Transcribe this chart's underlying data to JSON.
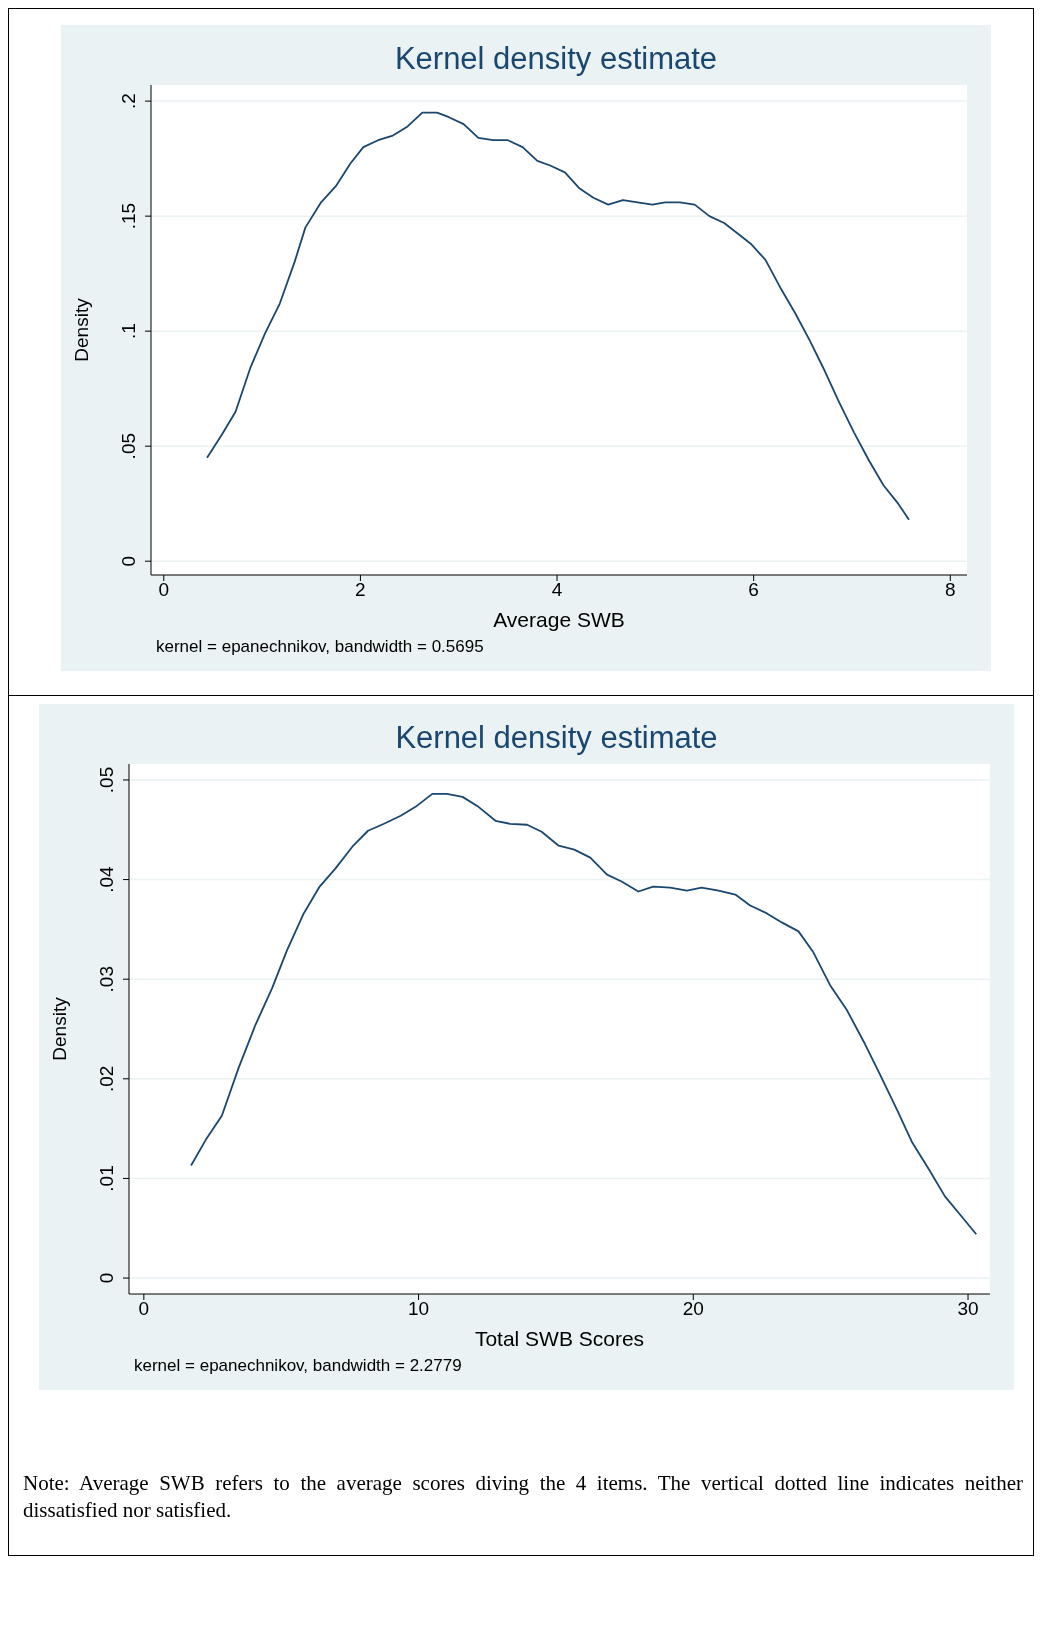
{
  "chart_data": [
    {
      "type": "line",
      "title": "Kernel density estimate",
      "xlabel": "Average SWB",
      "ylabel": "Density",
      "color": "#1a476f",
      "marker": "none",
      "grid": "y",
      "x": [
        0.44,
        0.59,
        0.73,
        0.88,
        1.03,
        1.18,
        1.33,
        1.44,
        1.6,
        1.75,
        1.9,
        2.03,
        2.18,
        2.33,
        2.48,
        2.63,
        2.78,
        2.9,
        3.05,
        3.2,
        3.35,
        3.5,
        3.65,
        3.8,
        3.93,
        4.08,
        4.23,
        4.37,
        4.52,
        4.67,
        4.82,
        4.97,
        5.1,
        5.25,
        5.4,
        5.55,
        5.7,
        5.85,
        5.97,
        6.12,
        6.27,
        6.42,
        6.57,
        6.72,
        6.87,
        7.02,
        7.17,
        7.32,
        7.47,
        7.58
      ],
      "values": [
        0.045,
        0.055,
        0.065,
        0.084,
        0.099,
        0.112,
        0.13,
        0.145,
        0.156,
        0.163,
        0.173,
        0.18,
        0.183,
        0.185,
        0.189,
        0.195,
        0.195,
        0.193,
        0.19,
        0.184,
        0.183,
        0.183,
        0.18,
        0.174,
        0.172,
        0.169,
        0.162,
        0.158,
        0.155,
        0.157,
        0.156,
        0.155,
        0.156,
        0.156,
        0.155,
        0.15,
        0.147,
        0.142,
        0.138,
        0.131,
        0.119,
        0.108,
        0.096,
        0.083,
        0.069,
        0.056,
        0.044,
        0.033,
        0.025,
        0.018
      ],
      "xlim": [
        -0.13,
        8.17
      ],
      "xticks": [
        0,
        2,
        4,
        6,
        8
      ],
      "ylim": [
        -0.006,
        0.207
      ],
      "yticks": [
        0,
        {
          "value": 0.05,
          "label": ".05"
        },
        {
          "value": 0.1,
          "label": ".1"
        },
        {
          "value": 0.15,
          "label": ".15"
        },
        {
          "value": 0.2,
          "label": ".2"
        }
      ],
      "annotations": [
        "kernel = epanechnikov, bandwidth = 0.5695"
      ]
    },
    {
      "type": "line",
      "title": "Kernel density estimate",
      "xlabel": "Total SWB Scores",
      "ylabel": "Density",
      "color": "#1a476f",
      "marker": "none",
      "grid": "y",
      "x": [
        1.72,
        2.26,
        2.84,
        3.45,
        4.06,
        4.67,
        5.21,
        5.82,
        6.4,
        6.97,
        7.59,
        8.16,
        8.74,
        9.35,
        9.89,
        10.5,
        11.03,
        11.6,
        12.18,
        12.8,
        13.33,
        13.95,
        14.48,
        15.1,
        15.67,
        16.25,
        16.86,
        17.39,
        18.0,
        18.54,
        19.16,
        19.77,
        20.3,
        20.92,
        21.53,
        22.07,
        22.68,
        23.22,
        23.83,
        24.37,
        24.98,
        25.59,
        26.21,
        26.82,
        27.43,
        27.97,
        28.58,
        29.16,
        29.73,
        30.3
      ],
      "values": [
        0.0113,
        0.0139,
        0.0163,
        0.0211,
        0.0254,
        0.0291,
        0.0329,
        0.0366,
        0.0393,
        0.0411,
        0.0433,
        0.0449,
        0.0456,
        0.0464,
        0.0473,
        0.0486,
        0.0486,
        0.0483,
        0.0473,
        0.0459,
        0.0456,
        0.0455,
        0.0448,
        0.0434,
        0.043,
        0.0422,
        0.0405,
        0.0398,
        0.0388,
        0.0393,
        0.0392,
        0.0389,
        0.0392,
        0.0389,
        0.0385,
        0.0374,
        0.0366,
        0.0357,
        0.0348,
        0.0327,
        0.0294,
        0.0269,
        0.0237,
        0.0203,
        0.0168,
        0.0136,
        0.0109,
        0.0082,
        0.0063,
        0.0044
      ],
      "xlim": [
        -0.54,
        30.8
      ],
      "xticks": [
        0,
        10,
        20,
        30
      ],
      "ylim": [
        -0.0016,
        0.0516
      ],
      "yticks": [
        0,
        {
          "value": 0.01,
          "label": ".01"
        },
        {
          "value": 0.02,
          "label": ".02"
        },
        {
          "value": 0.03,
          "label": ".03"
        },
        {
          "value": 0.04,
          "label": ".04"
        },
        {
          "value": 0.05,
          "label": ".05"
        }
      ],
      "annotations": [
        "kernel = epanechnikov, bandwidth = 2.2779",
        "Note: Average SWB refers to the average scores diving the 4 items. The vertical dotted line indicates neither dissatisfied nor satisfied."
      ]
    }
  ]
}
